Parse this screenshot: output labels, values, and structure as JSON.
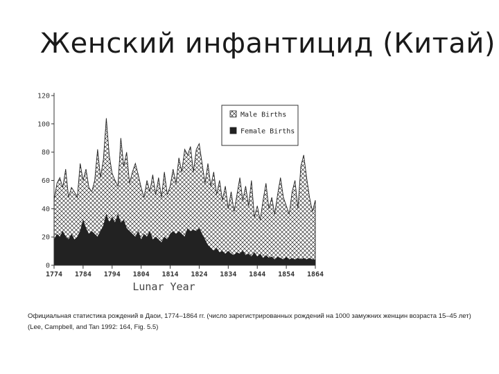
{
  "slide": {
    "title": "Женский инфантицид (Китай)",
    "caption_line1": "Официальная статистика рождений в Даои, 1774–1864 гг. (число зарегистрированных рождений на 1000 замужних женщин возраста 15–45 лет)",
    "caption_line2": "(Lee, Campbell, and Tan 1992: 164, Fig. 5.5)"
  },
  "chart_data": {
    "type": "area",
    "xlabel": "Lunar Year",
    "ylabel": "",
    "xlim": [
      1774,
      1864
    ],
    "ylim": [
      0,
      120
    ],
    "x_ticks": [
      1774,
      1784,
      1794,
      1804,
      1814,
      1824,
      1834,
      1844,
      1854,
      1864
    ],
    "y_ticks": [
      0,
      20,
      40,
      60,
      80,
      100,
      120
    ],
    "legend_position": "top-right",
    "grid": false,
    "series": [
      {
        "name": "Male Births",
        "fill": "crosshatch",
        "color": "#222222",
        "points": [
          [
            1774,
            46
          ],
          [
            1775,
            58
          ],
          [
            1776,
            62
          ],
          [
            1777,
            55
          ],
          [
            1778,
            68
          ],
          [
            1779,
            48
          ],
          [
            1780,
            55
          ],
          [
            1781,
            52
          ],
          [
            1782,
            48
          ],
          [
            1783,
            72
          ],
          [
            1784,
            60
          ],
          [
            1785,
            68
          ],
          [
            1786,
            55
          ],
          [
            1787,
            52
          ],
          [
            1788,
            60
          ],
          [
            1789,
            82
          ],
          [
            1790,
            62
          ],
          [
            1791,
            75
          ],
          [
            1792,
            104
          ],
          [
            1793,
            78
          ],
          [
            1794,
            65
          ],
          [
            1795,
            60
          ],
          [
            1796,
            56
          ],
          [
            1797,
            90
          ],
          [
            1798,
            70
          ],
          [
            1799,
            80
          ],
          [
            1800,
            58
          ],
          [
            1801,
            66
          ],
          [
            1802,
            72
          ],
          [
            1803,
            64
          ],
          [
            1804,
            55
          ],
          [
            1805,
            48
          ],
          [
            1806,
            60
          ],
          [
            1807,
            52
          ],
          [
            1808,
            64
          ],
          [
            1809,
            50
          ],
          [
            1810,
            62
          ],
          [
            1811,
            48
          ],
          [
            1812,
            66
          ],
          [
            1813,
            50
          ],
          [
            1814,
            56
          ],
          [
            1815,
            68
          ],
          [
            1816,
            58
          ],
          [
            1817,
            76
          ],
          [
            1818,
            66
          ],
          [
            1819,
            82
          ],
          [
            1820,
            78
          ],
          [
            1821,
            84
          ],
          [
            1822,
            66
          ],
          [
            1823,
            82
          ],
          [
            1824,
            86
          ],
          [
            1825,
            72
          ],
          [
            1826,
            58
          ],
          [
            1827,
            72
          ],
          [
            1828,
            56
          ],
          [
            1829,
            66
          ],
          [
            1830,
            50
          ],
          [
            1831,
            60
          ],
          [
            1832,
            46
          ],
          [
            1833,
            56
          ],
          [
            1834,
            40
          ],
          [
            1835,
            52
          ],
          [
            1836,
            38
          ],
          [
            1837,
            50
          ],
          [
            1838,
            62
          ],
          [
            1839,
            46
          ],
          [
            1840,
            56
          ],
          [
            1841,
            42
          ],
          [
            1842,
            60
          ],
          [
            1843,
            34
          ],
          [
            1844,
            42
          ],
          [
            1845,
            32
          ],
          [
            1846,
            46
          ],
          [
            1847,
            58
          ],
          [
            1848,
            40
          ],
          [
            1849,
            48
          ],
          [
            1850,
            36
          ],
          [
            1851,
            50
          ],
          [
            1852,
            62
          ],
          [
            1853,
            48
          ],
          [
            1854,
            42
          ],
          [
            1855,
            36
          ],
          [
            1856,
            52
          ],
          [
            1857,
            60
          ],
          [
            1858,
            40
          ],
          [
            1859,
            70
          ],
          [
            1860,
            78
          ],
          [
            1861,
            62
          ],
          [
            1862,
            48
          ],
          [
            1863,
            38
          ],
          [
            1864,
            46
          ]
        ]
      },
      {
        "name": "Female Births",
        "fill": "solid",
        "color": "#222222",
        "points": [
          [
            1774,
            18
          ],
          [
            1775,
            22
          ],
          [
            1776,
            20
          ],
          [
            1777,
            24
          ],
          [
            1778,
            20
          ],
          [
            1779,
            18
          ],
          [
            1780,
            22
          ],
          [
            1781,
            18
          ],
          [
            1782,
            20
          ],
          [
            1783,
            24
          ],
          [
            1784,
            32
          ],
          [
            1785,
            26
          ],
          [
            1786,
            22
          ],
          [
            1787,
            24
          ],
          [
            1788,
            22
          ],
          [
            1789,
            20
          ],
          [
            1790,
            24
          ],
          [
            1791,
            28
          ],
          [
            1792,
            36
          ],
          [
            1793,
            30
          ],
          [
            1794,
            34
          ],
          [
            1795,
            30
          ],
          [
            1796,
            36
          ],
          [
            1797,
            30
          ],
          [
            1798,
            32
          ],
          [
            1799,
            26
          ],
          [
            1800,
            24
          ],
          [
            1801,
            22
          ],
          [
            1802,
            20
          ],
          [
            1803,
            24
          ],
          [
            1804,
            18
          ],
          [
            1805,
            22
          ],
          [
            1806,
            20
          ],
          [
            1807,
            24
          ],
          [
            1808,
            18
          ],
          [
            1809,
            20
          ],
          [
            1810,
            18
          ],
          [
            1811,
            16
          ],
          [
            1812,
            20
          ],
          [
            1813,
            18
          ],
          [
            1814,
            22
          ],
          [
            1815,
            24
          ],
          [
            1816,
            22
          ],
          [
            1817,
            24
          ],
          [
            1818,
            22
          ],
          [
            1819,
            20
          ],
          [
            1820,
            26
          ],
          [
            1821,
            24
          ],
          [
            1822,
            25
          ],
          [
            1823,
            24
          ],
          [
            1824,
            26
          ],
          [
            1825,
            22
          ],
          [
            1826,
            18
          ],
          [
            1827,
            14
          ],
          [
            1828,
            12
          ],
          [
            1829,
            10
          ],
          [
            1830,
            12
          ],
          [
            1831,
            9
          ],
          [
            1832,
            10
          ],
          [
            1833,
            8
          ],
          [
            1834,
            10
          ],
          [
            1835,
            8
          ],
          [
            1836,
            7
          ],
          [
            1837,
            9
          ],
          [
            1838,
            8
          ],
          [
            1839,
            10
          ],
          [
            1840,
            7
          ],
          [
            1841,
            8
          ],
          [
            1842,
            6
          ],
          [
            1843,
            9
          ],
          [
            1844,
            6
          ],
          [
            1845,
            8
          ],
          [
            1846,
            5
          ],
          [
            1847,
            7
          ],
          [
            1848,
            5
          ],
          [
            1849,
            6
          ],
          [
            1850,
            4
          ],
          [
            1851,
            6
          ],
          [
            1852,
            5
          ],
          [
            1853,
            4
          ],
          [
            1854,
            6
          ],
          [
            1855,
            4
          ],
          [
            1856,
            5
          ],
          [
            1857,
            4
          ],
          [
            1858,
            5
          ],
          [
            1859,
            4
          ],
          [
            1860,
            5
          ],
          [
            1861,
            4
          ],
          [
            1862,
            5
          ],
          [
            1863,
            4
          ],
          [
            1864,
            4
          ]
        ]
      }
    ]
  }
}
